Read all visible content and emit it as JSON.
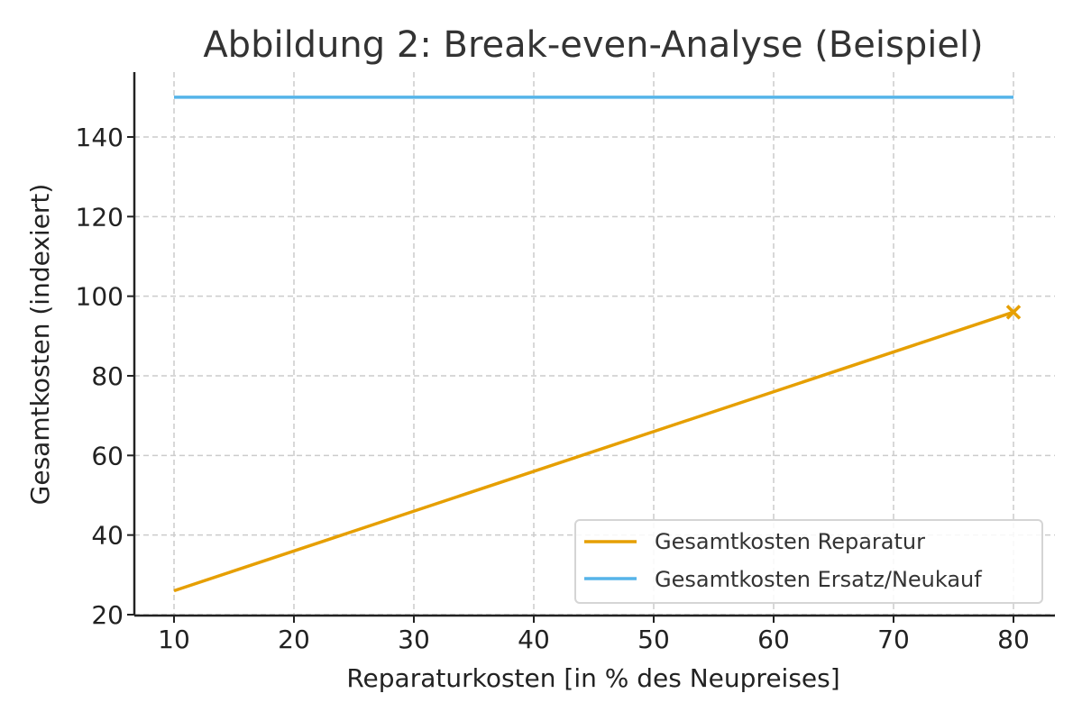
{
  "chart_data": {
    "type": "line",
    "title": "Abbildung 2: Break-even-Analyse (Beispiel)",
    "xlabel": "Reparaturkosten [in % des Neupreises]",
    "ylabel": "Gesamtkosten (indexiert)",
    "xlim": [
      6.5,
      83.5
    ],
    "ylim": [
      20,
      155
    ],
    "x_ticks": [
      10,
      20,
      30,
      40,
      50,
      60,
      70,
      80
    ],
    "y_ticks": [
      20,
      40,
      60,
      80,
      100,
      120,
      140
    ],
    "grid": true,
    "legend_position": "lower right",
    "series": [
      {
        "name": "Gesamtkosten Reparatur",
        "color": "#E69F00",
        "x": [
          10,
          80
        ],
        "y": [
          26,
          96
        ],
        "end_marker": "x"
      },
      {
        "name": "Gesamtkosten Ersatz/Neukauf",
        "color": "#56B4E9",
        "x": [
          10,
          80
        ],
        "y": [
          150,
          150
        ]
      }
    ]
  }
}
